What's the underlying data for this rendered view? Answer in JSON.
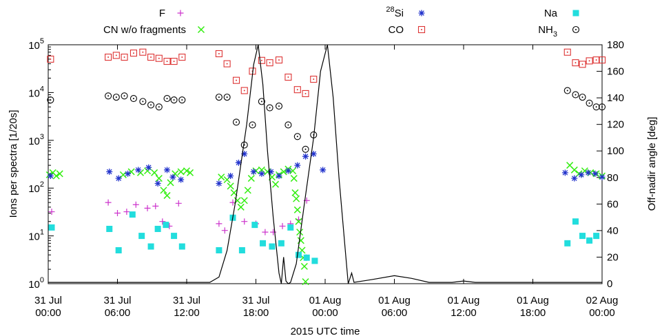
{
  "chart_data": {
    "type": "scatter",
    "title": "",
    "xlabel": "2015 UTC time",
    "ylabel": "Ions per spectra [1/20s]",
    "y2label": "Off-nadir angle [deg]",
    "xlim": [
      0,
      48
    ],
    "ylim": [
      1,
      100000
    ],
    "yscale": "log",
    "y2lim": [
      0,
      180
    ],
    "grid": false,
    "legend_position": "top",
    "x_ticks": [
      {
        "x": 0,
        "line1": "31 Jul",
        "line2": "00:00"
      },
      {
        "x": 6,
        "line1": "31 Jul",
        "line2": "06:00"
      },
      {
        "x": 12,
        "line1": "31 Jul",
        "line2": "12:00"
      },
      {
        "x": 18,
        "line1": "31 Jul",
        "line2": "18:00"
      },
      {
        "x": 24,
        "line1": "01 Aug",
        "line2": "00:00"
      },
      {
        "x": 30,
        "line1": "01 Aug",
        "line2": "06:00"
      },
      {
        "x": 36,
        "line1": "01 Aug",
        "line2": "12:00"
      },
      {
        "x": 42,
        "line1": "01 Aug",
        "line2": "18:00"
      },
      {
        "x": 48,
        "line1": "02 Aug",
        "line2": "00:00"
      }
    ],
    "y_ticks": [
      {
        "value": 1,
        "base": "10",
        "exp": "0"
      },
      {
        "value": 10,
        "base": "10",
        "exp": "1"
      },
      {
        "value": 100,
        "base": "10",
        "exp": "2"
      },
      {
        "value": 1000,
        "base": "10",
        "exp": "3"
      },
      {
        "value": 10000,
        "base": "10",
        "exp": "4"
      },
      {
        "value": 100000,
        "base": "10",
        "exp": "5"
      }
    ],
    "y2_ticks": [
      "0",
      "20",
      "40",
      "60",
      "80",
      "100",
      "120",
      "140",
      "160",
      "180"
    ],
    "series": [
      {
        "name": "F",
        "marker": "plus",
        "color": "#cc33cc",
        "axis": "y",
        "points": [
          [
            0.3,
            32
          ],
          [
            5.2,
            50
          ],
          [
            6.0,
            30
          ],
          [
            6.8,
            32
          ],
          [
            7.6,
            45
          ],
          [
            8.6,
            38
          ],
          [
            9.3,
            42
          ],
          [
            9.9,
            20
          ],
          [
            10.5,
            16
          ],
          [
            11.3,
            48
          ],
          [
            14.8,
            18
          ],
          [
            15.3,
            13
          ],
          [
            16.0,
            50
          ],
          [
            17.0,
            20
          ],
          [
            18.0,
            18
          ],
          [
            18.8,
            12
          ],
          [
            19.5,
            12
          ],
          [
            20.3,
            16
          ],
          [
            21.0,
            18
          ],
          [
            21.7,
            22
          ],
          [
            22.4,
            55
          ]
        ]
      },
      {
        "name": "CN w/o fragments",
        "marker": "cross",
        "color": "#33ee11",
        "axis": "y",
        "points": [
          [
            0.1,
            190
          ],
          [
            0.4,
            210
          ],
          [
            0.7,
            180
          ],
          [
            1.0,
            200
          ],
          [
            6.5,
            190
          ],
          [
            7.2,
            220
          ],
          [
            8.0,
            210
          ],
          [
            8.6,
            230
          ],
          [
            9.2,
            210
          ],
          [
            9.6,
            160
          ],
          [
            10.0,
            90
          ],
          [
            10.3,
            70
          ],
          [
            10.6,
            130
          ],
          [
            11.0,
            200
          ],
          [
            11.5,
            220
          ],
          [
            12.0,
            230
          ],
          [
            12.3,
            210
          ],
          [
            15.0,
            170
          ],
          [
            15.5,
            150
          ],
          [
            15.8,
            110
          ],
          [
            16.1,
            80
          ],
          [
            16.4,
            55
          ],
          [
            16.7,
            40
          ],
          [
            17.0,
            55
          ],
          [
            17.3,
            90
          ],
          [
            17.6,
            160
          ],
          [
            18.0,
            230
          ],
          [
            18.5,
            240
          ],
          [
            19.0,
            220
          ],
          [
            19.4,
            170
          ],
          [
            19.7,
            120
          ],
          [
            20.0,
            190
          ],
          [
            20.4,
            220
          ],
          [
            20.8,
            250
          ],
          [
            21.2,
            230
          ],
          [
            21.3,
            160
          ],
          [
            21.4,
            80
          ],
          [
            21.5,
            60
          ],
          [
            21.6,
            35
          ],
          [
            21.7,
            20
          ],
          [
            21.8,
            12
          ],
          [
            21.9,
            8
          ],
          [
            22.0,
            5
          ],
          [
            22.1,
            3.5
          ],
          [
            22.2,
            2.3
          ],
          [
            22.3,
            1.1
          ],
          [
            45.2,
            300
          ],
          [
            45.6,
            240
          ],
          [
            46.0,
            200
          ],
          [
            46.5,
            230
          ],
          [
            47.0,
            210
          ],
          [
            47.5,
            200
          ],
          [
            48.0,
            180
          ]
        ]
      },
      {
        "name": "28Si",
        "label_main": "Si",
        "label_sup": "28",
        "marker": "asterisk",
        "color": "#2233cc",
        "axis": "y",
        "points": [
          [
            0.2,
            180
          ],
          [
            5.3,
            220
          ],
          [
            6.1,
            160
          ],
          [
            6.9,
            200
          ],
          [
            7.8,
            240
          ],
          [
            8.7,
            270
          ],
          [
            9.5,
            125
          ],
          [
            10.3,
            240
          ],
          [
            10.8,
            170
          ],
          [
            11.5,
            150
          ],
          [
            14.8,
            125
          ],
          [
            15.8,
            180
          ],
          [
            16.5,
            340
          ],
          [
            17.0,
            520
          ],
          [
            17.8,
            220
          ],
          [
            18.5,
            200
          ],
          [
            19.3,
            220
          ],
          [
            20.0,
            180
          ],
          [
            20.8,
            230
          ],
          [
            21.6,
            300
          ],
          [
            22.3,
            460
          ],
          [
            23.0,
            520
          ],
          [
            23.8,
            240
          ],
          [
            44.8,
            210
          ],
          [
            45.6,
            160
          ],
          [
            46.2,
            190
          ],
          [
            46.8,
            210
          ],
          [
            47.4,
            200
          ],
          [
            48.0,
            170
          ]
        ]
      },
      {
        "name": "CO",
        "marker": "boxdot",
        "color": "#dd3333",
        "axis": "y",
        "points": [
          [
            0.2,
            50000
          ],
          [
            5.2,
            55000
          ],
          [
            5.9,
            60000
          ],
          [
            6.6,
            55000
          ],
          [
            7.4,
            67000
          ],
          [
            8.2,
            70000
          ],
          [
            8.9,
            55000
          ],
          [
            9.6,
            52000
          ],
          [
            10.3,
            45000
          ],
          [
            10.9,
            45000
          ],
          [
            11.6,
            55000
          ],
          [
            14.8,
            65000
          ],
          [
            15.5,
            40000
          ],
          [
            16.3,
            18000
          ],
          [
            17.0,
            11000
          ],
          [
            17.7,
            28000
          ],
          [
            18.5,
            47000
          ],
          [
            19.2,
            42000
          ],
          [
            20.0,
            48000
          ],
          [
            20.8,
            21000
          ],
          [
            21.6,
            11500
          ],
          [
            22.3,
            9500
          ],
          [
            23.0,
            19000
          ],
          [
            45.0,
            70000
          ],
          [
            45.7,
            42000
          ],
          [
            46.3,
            39000
          ],
          [
            46.9,
            46000
          ],
          [
            47.5,
            48000
          ],
          [
            48.0,
            48000
          ]
        ]
      },
      {
        "name": "Na",
        "marker": "filled-square",
        "color": "#22dddd",
        "axis": "y",
        "points": [
          [
            0.3,
            15
          ],
          [
            5.3,
            14
          ],
          [
            6.1,
            5
          ],
          [
            7.3,
            28
          ],
          [
            8.1,
            10
          ],
          [
            8.9,
            6
          ],
          [
            9.5,
            14
          ],
          [
            10.2,
            17
          ],
          [
            10.9,
            10
          ],
          [
            11.6,
            6
          ],
          [
            14.8,
            5
          ],
          [
            16.0,
            24
          ],
          [
            16.8,
            5
          ],
          [
            17.9,
            17
          ],
          [
            18.6,
            7
          ],
          [
            19.4,
            6
          ],
          [
            20.2,
            7
          ],
          [
            21.0,
            15
          ],
          [
            21.7,
            4
          ],
          [
            22.4,
            3.5
          ],
          [
            23.1,
            3
          ],
          [
            45.0,
            7
          ],
          [
            45.7,
            20
          ],
          [
            46.3,
            10
          ],
          [
            46.9,
            8
          ],
          [
            47.5,
            10
          ]
        ]
      },
      {
        "name": "NH3",
        "label_main": "NH",
        "label_sub": "3",
        "marker": "circle-dot",
        "color": "#000000",
        "axis": "y",
        "points": [
          [
            0.2,
            7000
          ],
          [
            5.2,
            8500
          ],
          [
            5.9,
            8000
          ],
          [
            6.6,
            8500
          ],
          [
            7.4,
            7500
          ],
          [
            8.2,
            6500
          ],
          [
            8.9,
            5500
          ],
          [
            9.6,
            5000
          ],
          [
            10.3,
            7500
          ],
          [
            10.9,
            7000
          ],
          [
            11.6,
            7000
          ],
          [
            14.8,
            8000
          ],
          [
            15.5,
            8000
          ],
          [
            16.3,
            2400
          ],
          [
            17.0,
            800
          ],
          [
            17.7,
            2100
          ],
          [
            18.5,
            6500
          ],
          [
            19.2,
            4800
          ],
          [
            20.0,
            5200
          ],
          [
            20.8,
            2100
          ],
          [
            21.6,
            1200
          ],
          [
            22.3,
            650
          ],
          [
            23.0,
            1300
          ],
          [
            45.0,
            11000
          ],
          [
            45.7,
            9000
          ],
          [
            46.3,
            8000
          ],
          [
            46.9,
            6000
          ],
          [
            47.5,
            5000
          ],
          [
            48.0,
            5000
          ]
        ]
      },
      {
        "name": "Off-nadir angle",
        "marker": "line",
        "color": "#000000",
        "axis": "y2",
        "points": [
          [
            0,
            1
          ],
          [
            14.0,
            1
          ],
          [
            14.8,
            5
          ],
          [
            15.5,
            25
          ],
          [
            16.2,
            60
          ],
          [
            17.2,
            120
          ],
          [
            17.8,
            165
          ],
          [
            18.2,
            180
          ],
          [
            18.6,
            150
          ],
          [
            19.0,
            100
          ],
          [
            19.5,
            50
          ],
          [
            20.0,
            8
          ],
          [
            20.2,
            0
          ],
          [
            20.4,
            20
          ],
          [
            20.6,
            2
          ],
          [
            20.8,
            0
          ],
          [
            21.0,
            1
          ],
          [
            21.5,
            15
          ],
          [
            22.2,
            60
          ],
          [
            23.0,
            110
          ],
          [
            23.6,
            160
          ],
          [
            24.2,
            180
          ],
          [
            24.7,
            140
          ],
          [
            25.2,
            80
          ],
          [
            25.8,
            20
          ],
          [
            26.0,
            0
          ],
          [
            26.3,
            8
          ],
          [
            26.5,
            1
          ],
          [
            28.0,
            3
          ],
          [
            30.0,
            6
          ],
          [
            31.5,
            4
          ],
          [
            33.0,
            1
          ],
          [
            35.0,
            1
          ],
          [
            36.0,
            2
          ],
          [
            37.0,
            1
          ],
          [
            48.0,
            1
          ]
        ]
      }
    ]
  }
}
